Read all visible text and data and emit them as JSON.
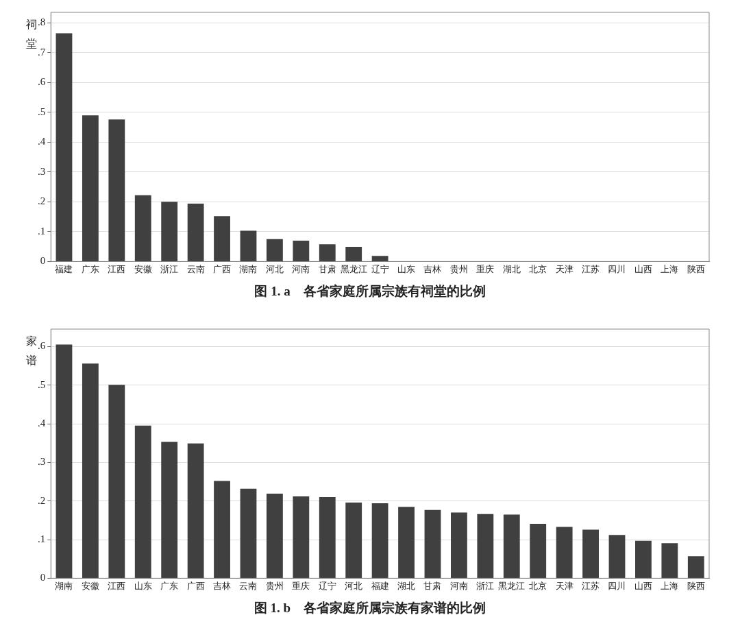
{
  "chart_data": [
    {
      "type": "bar",
      "title": "图 1. a　各省家庭所属宗族有祠堂的比例",
      "ylabel": "祠堂",
      "categories": [
        "福建",
        "广东",
        "江西",
        "安徽",
        "浙江",
        "云南",
        "广西",
        "湖南",
        "河北",
        "河南",
        "甘肃",
        "黑龙江",
        "辽宁",
        "山东",
        "吉林",
        "贵州",
        "重庆",
        "湖北",
        "北京",
        "天津",
        "江苏",
        "四川",
        "山西",
        "上海",
        "陕西"
      ],
      "values": [
        0.765,
        0.49,
        0.476,
        0.222,
        0.2,
        0.194,
        0.152,
        0.103,
        0.075,
        0.07,
        0.058,
        0.049,
        0.019,
        0,
        0,
        0,
        0,
        0,
        0,
        0,
        0,
        0,
        0,
        0,
        0
      ],
      "color": "#404040",
      "ylim": [
        0,
        0.835
      ],
      "yticks": [
        {
          "value": 0,
          "label": "0"
        },
        {
          "value": 0.1,
          "label": ".1"
        },
        {
          "value": 0.2,
          "label": ".2"
        },
        {
          "value": 0.3,
          "label": ".3"
        },
        {
          "value": 0.4,
          "label": ".4"
        },
        {
          "value": 0.5,
          "label": ".5"
        },
        {
          "value": 0.6,
          "label": ".6"
        },
        {
          "value": 0.7,
          "label": ".7"
        },
        {
          "value": 0.8,
          "label": ".8"
        }
      ],
      "grid": "y",
      "legend": false
    },
    {
      "type": "bar",
      "title": "图 1. b　各省家庭所属宗族有家谱的比例",
      "ylabel": "家谱",
      "categories": [
        "湖南",
        "安徽",
        "江西",
        "山东",
        "广东",
        "广西",
        "吉林",
        "云南",
        "贵州",
        "重庆",
        "辽宁",
        "河北",
        "福建",
        "湖北",
        "甘肃",
        "河南",
        "浙江",
        "黑龙江",
        "北京",
        "天津",
        "江苏",
        "四川",
        "山西",
        "上海",
        "陕西"
      ],
      "values": [
        0.605,
        0.556,
        0.501,
        0.395,
        0.353,
        0.349,
        0.252,
        0.232,
        0.219,
        0.212,
        0.21,
        0.196,
        0.194,
        0.185,
        0.177,
        0.17,
        0.166,
        0.165,
        0.141,
        0.133,
        0.126,
        0.112,
        0.097,
        0.091,
        0.057
      ],
      "color": "#404040",
      "ylim": [
        0,
        0.645
      ],
      "yticks": [
        {
          "value": 0,
          "label": "0"
        },
        {
          "value": 0.1,
          "label": ".1"
        },
        {
          "value": 0.2,
          "label": ".2"
        },
        {
          "value": 0.3,
          "label": ".3"
        },
        {
          "value": 0.4,
          "label": ".4"
        },
        {
          "value": 0.5,
          "label": ".5"
        },
        {
          "value": 0.6,
          "label": ".6"
        }
      ],
      "grid": "y",
      "legend": false
    }
  ]
}
